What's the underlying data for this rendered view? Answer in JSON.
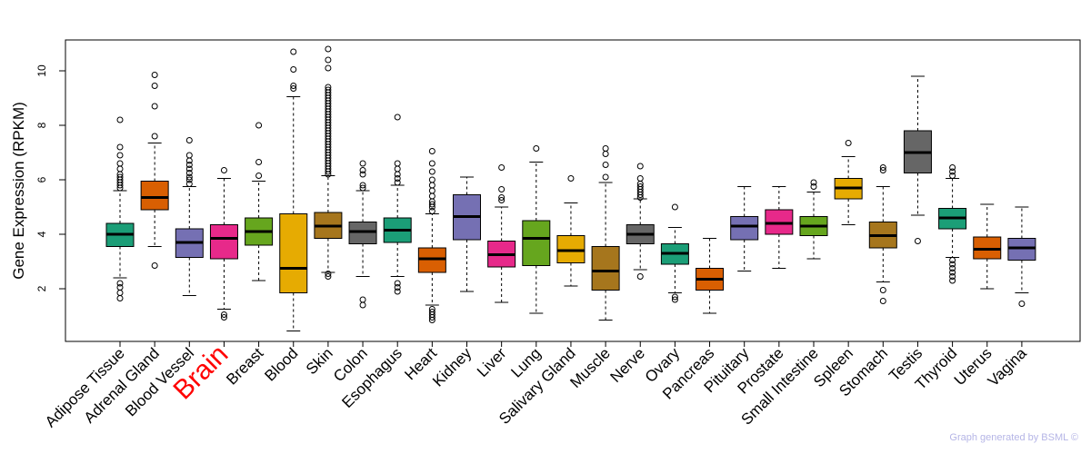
{
  "chart_data": {
    "type": "boxplot",
    "title": "",
    "xlabel": "",
    "ylabel": "Gene Expression (RPKM)",
    "ylim": [
      0,
      11.2
    ],
    "yticks": [
      2,
      4,
      6,
      8,
      10
    ],
    "highlight": "Brain",
    "highlight_color": "#ff0000",
    "categories": [
      "Adipose Tissue",
      "Adrenal Gland",
      "Blood Vessel",
      "Brain",
      "Breast",
      "Blood",
      "Skin",
      "Colon",
      "Esophagus",
      "Heart",
      "Kidney",
      "Liver",
      "Lung",
      "Salivary Gland",
      "Muscle",
      "Nerve",
      "Ovary",
      "Pancreas",
      "Pituitary",
      "Prostate",
      "Small Intestine",
      "Spleen",
      "Stomach",
      "Testis",
      "Thyroid",
      "Uterus",
      "Vagina"
    ],
    "colors": [
      "#1b9e77",
      "#d95f02",
      "#7570b3",
      "#e7298a",
      "#66a61e",
      "#e6ab02",
      "#a6761d",
      "#666666",
      "#1b9e77",
      "#d95f02",
      "#7570b3",
      "#e7298a",
      "#66a61e",
      "#e6ab02",
      "#a6761d",
      "#666666",
      "#1b9e77",
      "#d95f02",
      "#7570b3",
      "#e7298a",
      "#66a61e",
      "#e6ab02",
      "#a6761d",
      "#666666",
      "#1b9e77",
      "#d95f02",
      "#7570b3"
    ],
    "series": [
      {
        "name": "Adipose Tissue",
        "wlo": 2.4,
        "q1": 3.55,
        "median": 4.0,
        "q3": 4.4,
        "whi": 5.6,
        "outliers": [
          1.65,
          1.85,
          2.05,
          2.2,
          5.7,
          5.8,
          5.9,
          6.0,
          6.1,
          6.2,
          6.4,
          6.6,
          6.9,
          7.2,
          8.2
        ]
      },
      {
        "name": "Adrenal Gland",
        "wlo": 3.55,
        "q1": 4.9,
        "median": 5.35,
        "q3": 5.95,
        "whi": 7.35,
        "outliers": [
          2.85,
          7.6,
          8.7,
          9.45,
          9.85
        ]
      },
      {
        "name": "Blood Vessel",
        "wlo": 1.75,
        "q1": 3.15,
        "median": 3.7,
        "q3": 4.2,
        "whi": 5.75,
        "outliers": [
          5.85,
          6.0,
          6.1,
          6.25,
          6.4,
          6.55,
          6.7,
          6.9,
          7.45
        ]
      },
      {
        "name": "Brain",
        "wlo": 1.25,
        "q1": 3.1,
        "median": 3.85,
        "q3": 4.35,
        "whi": 6.05,
        "outliers": [
          0.95,
          1.05,
          6.35
        ]
      },
      {
        "name": "Breast",
        "wlo": 2.3,
        "q1": 3.6,
        "median": 4.1,
        "q3": 4.6,
        "whi": 5.95,
        "outliers": [
          6.15,
          6.65,
          8.0
        ]
      },
      {
        "name": "Blood",
        "wlo": 0.45,
        "q1": 1.85,
        "median": 2.75,
        "q3": 4.75,
        "whi": 9.05,
        "outliers": [
          9.35,
          9.45,
          10.05,
          10.7
        ]
      },
      {
        "name": "Skin",
        "wlo": 2.6,
        "q1": 3.85,
        "median": 4.3,
        "q3": 4.8,
        "whi": 6.15,
        "outliers": [
          2.45,
          2.55,
          6.2,
          6.3,
          6.4,
          6.5,
          6.6,
          6.7,
          6.8,
          6.9,
          7.0,
          7.1,
          7.2,
          7.3,
          7.4,
          7.5,
          7.6,
          7.7,
          7.8,
          7.9,
          8.0,
          8.1,
          8.2,
          8.3,
          8.4,
          8.5,
          8.6,
          8.7,
          8.8,
          8.9,
          9.0,
          9.1,
          9.2,
          9.3,
          9.4,
          10.1,
          10.4,
          10.8
        ]
      },
      {
        "name": "Colon",
        "wlo": 2.45,
        "q1": 3.65,
        "median": 4.1,
        "q3": 4.45,
        "whi": 5.6,
        "outliers": [
          1.4,
          1.6,
          5.7,
          5.8,
          6.2,
          6.35,
          6.6
        ]
      },
      {
        "name": "Esophagus",
        "wlo": 2.45,
        "q1": 3.7,
        "median": 4.15,
        "q3": 4.6,
        "whi": 5.8,
        "outliers": [
          1.9,
          2.05,
          2.2,
          5.9,
          6.05,
          6.2,
          6.4,
          6.6,
          8.3
        ]
      },
      {
        "name": "Heart",
        "wlo": 1.4,
        "q1": 2.6,
        "median": 3.1,
        "q3": 3.5,
        "whi": 4.75,
        "outliers": [
          0.85,
          0.95,
          1.05,
          1.15,
          1.25,
          4.85,
          5.0,
          5.1,
          5.2,
          5.4,
          5.6,
          5.8,
          6.0,
          6.3,
          6.6,
          7.05
        ]
      },
      {
        "name": "Kidney",
        "wlo": 1.9,
        "q1": 3.8,
        "median": 4.65,
        "q3": 5.45,
        "whi": 6.1,
        "outliers": []
      },
      {
        "name": "Liver",
        "wlo": 1.5,
        "q1": 2.8,
        "median": 3.25,
        "q3": 3.75,
        "whi": 5.0,
        "outliers": [
          5.25,
          5.35,
          5.65,
          6.45
        ]
      },
      {
        "name": "Lung",
        "wlo": 1.1,
        "q1": 2.85,
        "median": 3.85,
        "q3": 4.5,
        "whi": 6.65,
        "outliers": [
          7.15
        ]
      },
      {
        "name": "Salivary Gland",
        "wlo": 2.1,
        "q1": 2.95,
        "median": 3.4,
        "q3": 3.95,
        "whi": 5.15,
        "outliers": [
          6.05
        ]
      },
      {
        "name": "Muscle",
        "wlo": 0.85,
        "q1": 1.95,
        "median": 2.65,
        "q3": 3.55,
        "whi": 5.9,
        "outliers": [
          6.1,
          6.55,
          6.95,
          7.15
        ]
      },
      {
        "name": "Nerve",
        "wlo": 2.7,
        "q1": 3.65,
        "median": 4.0,
        "q3": 4.35,
        "whi": 5.3,
        "outliers": [
          2.45,
          5.35,
          5.45,
          5.55,
          5.65,
          5.75,
          5.85,
          6.05,
          6.5
        ]
      },
      {
        "name": "Ovary",
        "wlo": 1.85,
        "q1": 2.9,
        "median": 3.3,
        "q3": 3.65,
        "whi": 4.25,
        "outliers": [
          1.6,
          1.7,
          5.0
        ]
      },
      {
        "name": "Pancreas",
        "wlo": 1.1,
        "q1": 1.95,
        "median": 2.35,
        "q3": 2.75,
        "whi": 3.85,
        "outliers": []
      },
      {
        "name": "Pituitary",
        "wlo": 2.65,
        "q1": 3.8,
        "median": 4.3,
        "q3": 4.65,
        "whi": 5.75,
        "outliers": []
      },
      {
        "name": "Prostate",
        "wlo": 2.75,
        "q1": 4.0,
        "median": 4.4,
        "q3": 4.9,
        "whi": 5.75,
        "outliers": []
      },
      {
        "name": "Small Intestine",
        "wlo": 3.1,
        "q1": 3.95,
        "median": 4.3,
        "q3": 4.65,
        "whi": 5.55,
        "outliers": [
          5.75,
          5.9
        ]
      },
      {
        "name": "Spleen",
        "wlo": 4.35,
        "q1": 5.3,
        "median": 5.7,
        "q3": 6.05,
        "whi": 6.85,
        "outliers": [
          7.35
        ]
      },
      {
        "name": "Stomach",
        "wlo": 2.25,
        "q1": 3.5,
        "median": 3.95,
        "q3": 4.45,
        "whi": 5.75,
        "outliers": [
          1.55,
          1.95,
          6.35,
          6.45
        ]
      },
      {
        "name": "Testis",
        "wlo": 4.7,
        "q1": 6.25,
        "median": 7.0,
        "q3": 7.8,
        "whi": 9.8,
        "outliers": [
          3.75
        ]
      },
      {
        "name": "Thyroid",
        "wlo": 3.15,
        "q1": 4.2,
        "median": 4.6,
        "q3": 4.95,
        "whi": 6.05,
        "outliers": [
          2.3,
          2.45,
          2.6,
          2.75,
          2.9,
          3.05,
          6.15,
          6.3,
          6.45
        ]
      },
      {
        "name": "Uterus",
        "wlo": 2.0,
        "q1": 3.1,
        "median": 3.45,
        "q3": 3.9,
        "whi": 5.1,
        "outliers": []
      },
      {
        "name": "Vagina",
        "wlo": 1.85,
        "q1": 3.05,
        "median": 3.5,
        "q3": 3.85,
        "whi": 5.0,
        "outliers": [
          1.45
        ]
      }
    ]
  },
  "footer": "Graph generated by BSML ©"
}
